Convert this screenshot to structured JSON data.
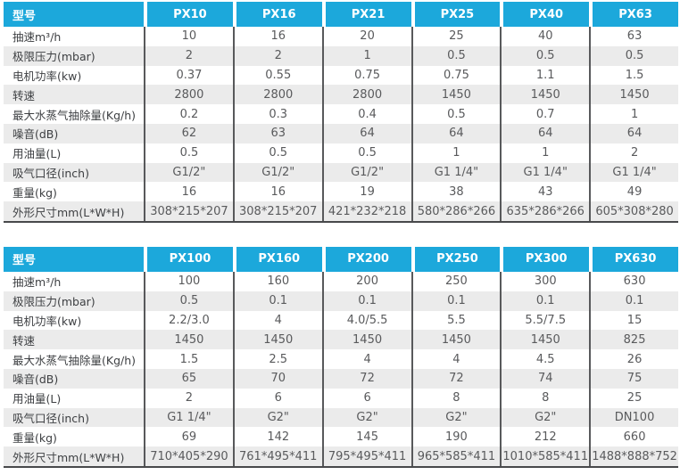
{
  "colors": {
    "header_bg": "#1CA8DB",
    "header_text": "#FFFFFF",
    "alt_row_bg": "#EBEBEB",
    "column_divider": "#58595B",
    "table_bottom_border": "#48494B",
    "label_text": "#3E4043",
    "value_text": "#595A5C"
  },
  "tables": [
    {
      "header": [
        "型号",
        "PX10",
        "PX16",
        "PX21",
        "PX25",
        "PX40",
        "PX63"
      ],
      "rows": [
        {
          "label": "抽速m³/h",
          "values": [
            "10",
            "16",
            "20",
            "25",
            "40",
            "63"
          ]
        },
        {
          "label": "极限压力(mbar)",
          "values": [
            "2",
            "2",
            "1",
            "0.5",
            "0.5",
            "0.5"
          ]
        },
        {
          "label": "电机功率(kw)",
          "values": [
            "0.37",
            "0.55",
            "0.75",
            "0.75",
            "1.1",
            "1.5"
          ]
        },
        {
          "label": "转速",
          "values": [
            "2800",
            "2800",
            "2800",
            "1450",
            "1450",
            "1450"
          ]
        },
        {
          "label": "最大水蒸气抽除量(Kg/h)",
          "values": [
            "0.2",
            "0.3",
            "0.4",
            "0.5",
            "0.7",
            "1"
          ]
        },
        {
          "label": "噪音(dB)",
          "values": [
            "62",
            "63",
            "64",
            "64",
            "64",
            "64"
          ]
        },
        {
          "label": "用油量(L)",
          "values": [
            "0.5",
            "0.5",
            "0.5",
            "1",
            "1",
            "2"
          ]
        },
        {
          "label": "吸气口径(inch)",
          "values": [
            "G1/2\"",
            "G1/2\"",
            "G1/2\"",
            "G1 1/4\"",
            "G1 1/4\"",
            "G1 1/4\""
          ]
        },
        {
          "label": "重量(kg)",
          "values": [
            "16",
            "16",
            "19",
            "38",
            "43",
            "49"
          ]
        },
        {
          "label": "外形尺寸mm(L*W*H)",
          "values": [
            "308*215*207",
            "308*215*207",
            "421*232*218",
            "580*286*266",
            "635*286*266",
            "605*308*280"
          ]
        }
      ]
    },
    {
      "header": [
        "型号",
        "PX100",
        "PX160",
        "PX200",
        "PX250",
        "PX300",
        "PX630"
      ],
      "rows": [
        {
          "label": "抽速m³/h",
          "values": [
            "100",
            "160",
            "200",
            "250",
            "300",
            "630"
          ]
        },
        {
          "label": "极限压力(mbar)",
          "values": [
            "0.5",
            "0.1",
            "0.1",
            "0.1",
            "0.1",
            "0.1"
          ]
        },
        {
          "label": "电机功率(kw)",
          "values": [
            "2.2/3.0",
            "4",
            "4.0/5.5",
            "5.5",
            "5.5/7.5",
            "15"
          ]
        },
        {
          "label": "转速",
          "values": [
            "1450",
            "1450",
            "1450",
            "1450",
            "1450",
            "825"
          ]
        },
        {
          "label": "最大水蒸气抽除量(Kg/h)",
          "values": [
            "1.5",
            "2.5",
            "4",
            "4",
            "4.5",
            "26"
          ]
        },
        {
          "label": "噪音(dB)",
          "values": [
            "65",
            "70",
            "72",
            "72",
            "74",
            "75"
          ]
        },
        {
          "label": "用油量(L)",
          "values": [
            "2",
            "6",
            "6",
            "8",
            "8",
            "25"
          ]
        },
        {
          "label": "吸气口径(inch)",
          "values": [
            "G1 1/4\"",
            "G2\"",
            "G2\"",
            "G2\"",
            "G2\"",
            "DN100"
          ]
        },
        {
          "label": "重量(kg)",
          "values": [
            "69",
            "142",
            "145",
            "190",
            "212",
            "660"
          ]
        },
        {
          "label": "外形尺寸mm(L*W*H)",
          "values": [
            "710*405*290",
            "761*495*411",
            "795*495*411",
            "965*585*411",
            "1010*585*411",
            "1488*888*752"
          ]
        }
      ]
    }
  ]
}
